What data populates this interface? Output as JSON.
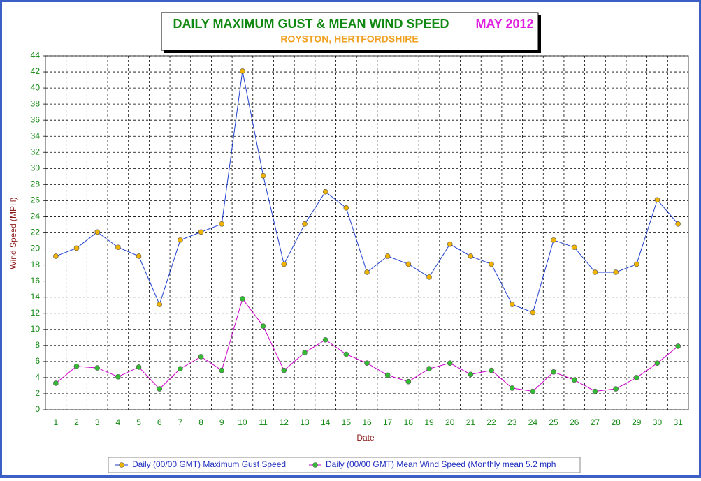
{
  "chart_data": {
    "type": "line",
    "title": "DAILY MAXIMUM GUST & MEAN WIND SPEED",
    "title_period": "MAY 2012",
    "subtitle": "ROYSTON, HERTFORDSHIRE",
    "x_label": "Date",
    "y_label": "Wind Speed (MPH)",
    "categories": [
      1,
      2,
      3,
      4,
      5,
      6,
      7,
      8,
      9,
      10,
      11,
      12,
      13,
      14,
      15,
      16,
      17,
      18,
      19,
      20,
      21,
      22,
      23,
      24,
      25,
      26,
      27,
      28,
      29,
      30,
      31
    ],
    "series": [
      {
        "name": "Daily (00/00 GMT) Maximum Gust Speed",
        "color": "#1f3fcf",
        "marker_color": "#f0b400",
        "values": [
          19.1,
          20.1,
          22.1,
          20.2,
          19.1,
          13.1,
          21.1,
          22.1,
          23.1,
          42.1,
          29.1,
          18.1,
          23.1,
          27.1,
          25.1,
          17.1,
          19.1,
          18.1,
          16.5,
          20.6,
          19.1,
          18.1,
          13.1,
          12.1,
          21.1,
          20.2,
          17.1,
          17.1,
          18.1,
          26.1,
          23.1
        ]
      },
      {
        "name": "Daily (00/00 GMT) Mean Wind Speed (Monthly mean 5.2 mph",
        "color": "#cc00cc",
        "marker_color": "#33bb33",
        "values": [
          3.3,
          5.4,
          5.2,
          4.1,
          5.3,
          2.6,
          5.1,
          6.6,
          4.9,
          13.8,
          10.4,
          4.9,
          7.1,
          8.7,
          6.9,
          5.8,
          4.3,
          3.5,
          5.1,
          5.8,
          4.4,
          4.9,
          2.7,
          2.3,
          4.7,
          3.7,
          2.3,
          2.6,
          4.0,
          5.8,
          7.9
        ]
      }
    ],
    "ylim": [
      0,
      44
    ],
    "yticks": [
      0,
      2,
      4,
      6,
      8,
      10,
      12,
      14,
      16,
      18,
      20,
      22,
      24,
      26,
      28,
      30,
      32,
      34,
      36,
      38,
      40,
      42,
      44
    ],
    "grid": true
  }
}
